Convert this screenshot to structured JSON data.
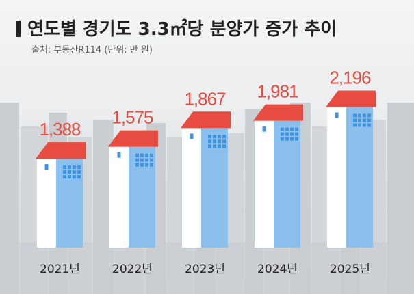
{
  "title": "연도별 경기도 3.3㎡당 분양가 증가 추이",
  "source": "출처: 부동산R114 (단위: 만 원)",
  "colors": {
    "roof": "#e84b3f",
    "wall": "#ffffff",
    "side": "#8cc0ec",
    "window": "#3f93e0",
    "value": "#e84b3f",
    "label": "#222222"
  },
  "chart_data": {
    "type": "bar",
    "categories": [
      "2021년",
      "2022년",
      "2023년",
      "2024년",
      "2025년"
    ],
    "values": [
      1388,
      1575,
      1867,
      1981,
      2196
    ],
    "value_labels": [
      "1,388",
      "1,575",
      "1,867",
      "1,981",
      "2,196"
    ],
    "title": "연도별 경기도 3.3㎡당 분양가 증가 추이",
    "xlabel": "",
    "ylabel": "",
    "ylim": [
      0,
      2800
    ],
    "grid": false,
    "legend": "none"
  }
}
